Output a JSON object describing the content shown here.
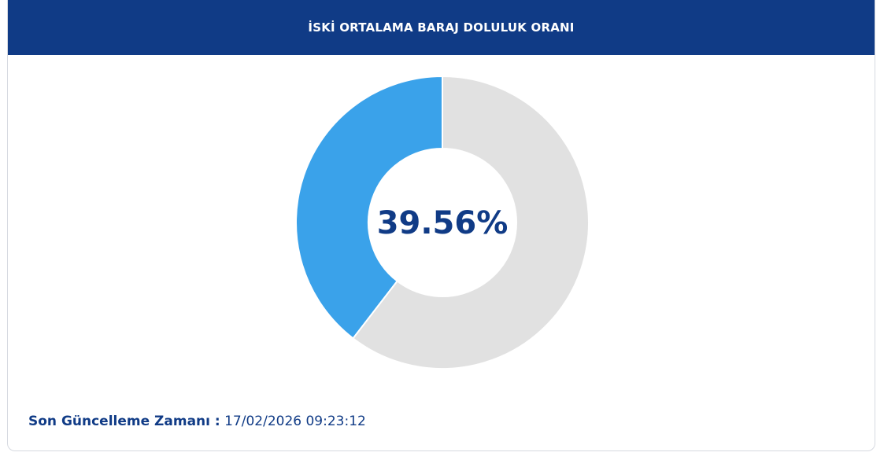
{
  "header": {
    "title": "İSKİ ORTALAMA BARAJ DOLULUK ORANI"
  },
  "chart_data": {
    "type": "pie",
    "variant": "donut",
    "center_label": "39.56%",
    "values": [
      39.56,
      60.44
    ],
    "colors": [
      "#3aa2ea",
      "#e1e1e1"
    ],
    "start": "top",
    "direction": "counter-clockwise"
  },
  "footer": {
    "label": "Son Güncelleme Zamanı :",
    "value": "17/02/2026 09:23:12"
  },
  "colors": {
    "header_bg": "#103b86",
    "accent_text": "#103b86"
  }
}
